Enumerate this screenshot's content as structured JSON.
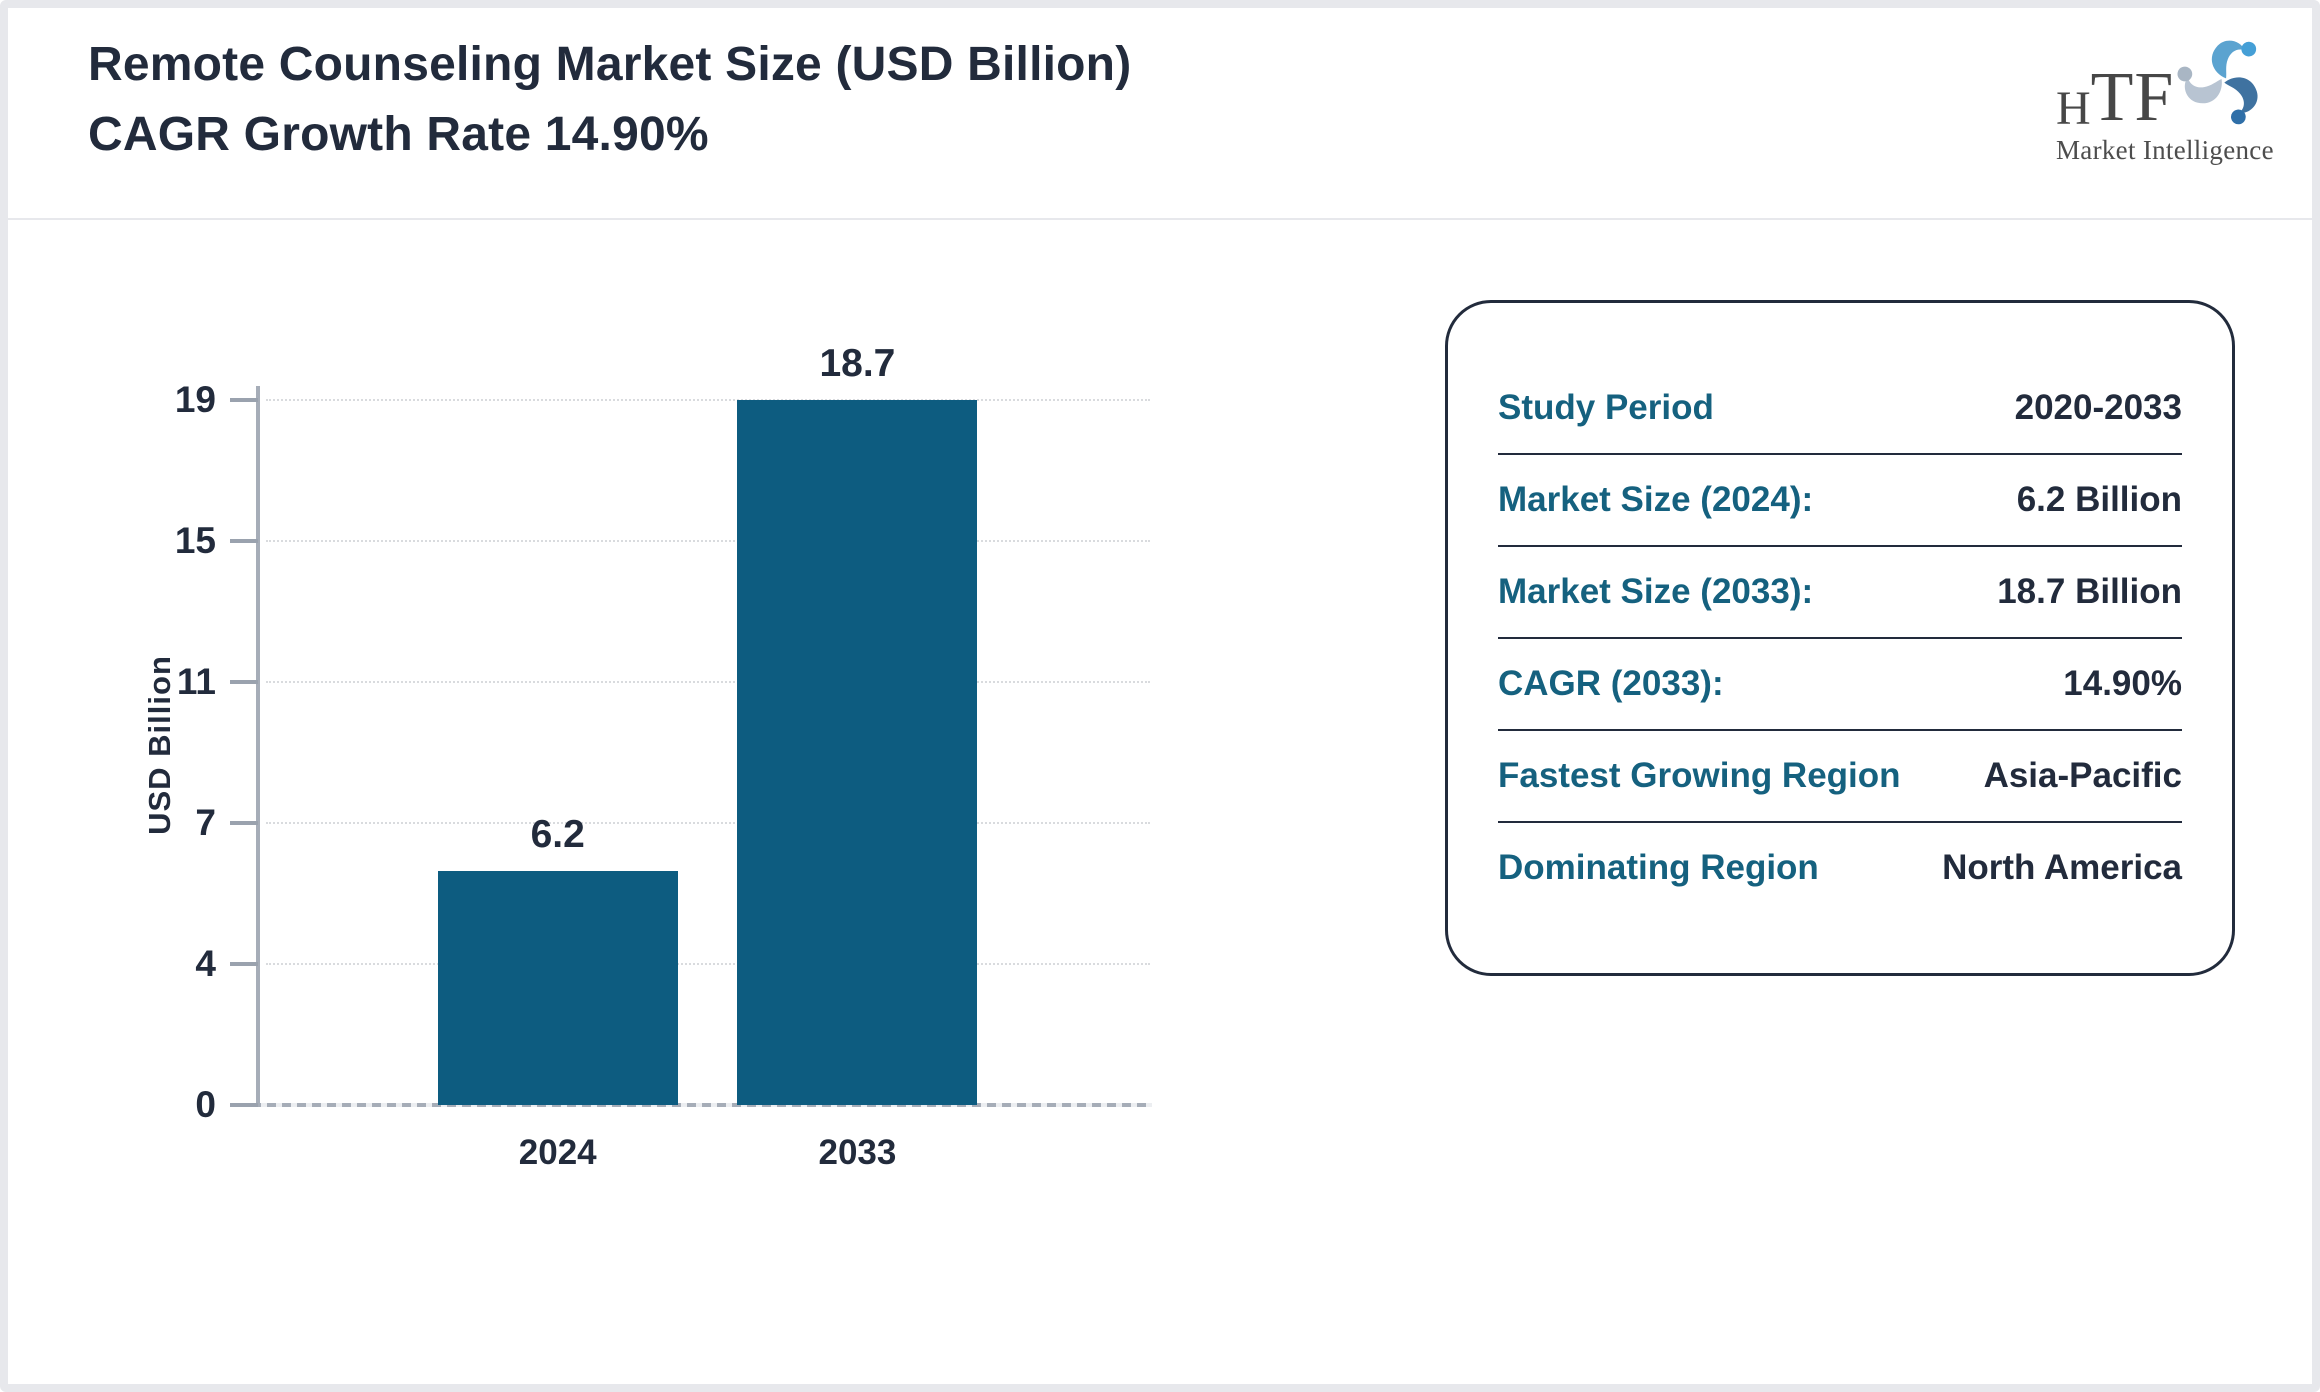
{
  "header": {
    "title_line1": "Remote Counseling Market Size (USD Billion)",
    "title_line2": "CAGR Growth Rate 14.90%",
    "logo": {
      "name_small": "H",
      "name_large": "TF",
      "tagline": "Market Intelligence",
      "swirl_colors": [
        "#5ba3d0",
        "#3f72a0",
        "#b8c4d2"
      ]
    }
  },
  "chart_data": {
    "type": "bar",
    "title": "Remote Counseling Market Size (USD Billion) CAGR Growth Rate 14.90%",
    "categories": [
      "2024",
      "2033"
    ],
    "values": [
      6.2,
      18.7
    ],
    "xlabel": "",
    "ylabel": "USD Billion",
    "ylim": [
      0,
      18.7
    ],
    "ytick_labels_top_to_bottom": [
      "19",
      "15",
      "11",
      "7",
      "4",
      "0"
    ],
    "grid": "horizontal-dotted",
    "legend": "none",
    "bar_color": "#0d5c80"
  },
  "info_panel": {
    "label_color": "#15617f",
    "value_color": "#222b3c",
    "rows": [
      {
        "label": "Study Period",
        "value": "2020-2033"
      },
      {
        "label": "Market Size (2024):",
        "value": "6.2 Billion"
      },
      {
        "label": "Market Size (2033):",
        "value": "18.7 Billion"
      },
      {
        "label": "CAGR (2033):",
        "value": "14.90%"
      },
      {
        "label": "Fastest Growing Region",
        "value": "Asia-Pacific"
      },
      {
        "label": "Dominating Region",
        "value": "North America"
      }
    ]
  }
}
